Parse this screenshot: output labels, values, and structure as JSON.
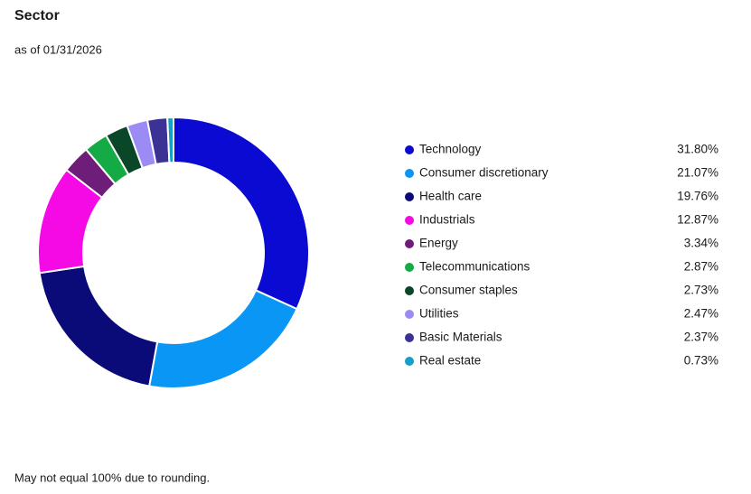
{
  "chart_data": {
    "type": "donut",
    "title": "Sector",
    "subtitle": "as of 01/31/2026",
    "categories": [
      "Technology",
      "Consumer discretionary",
      "Health care",
      "Industrials",
      "Energy",
      "Telecommunications",
      "Consumer staples",
      "Utilities",
      "Basic Materials",
      "Real estate"
    ],
    "values": [
      31.8,
      21.07,
      19.76,
      12.87,
      3.34,
      2.87,
      2.73,
      2.47,
      2.37,
      0.73
    ],
    "value_labels": [
      "31.80%",
      "21.07%",
      "19.76%",
      "12.87%",
      "3.34%",
      "2.87%",
      "2.73%",
      "2.47%",
      "2.37%",
      "0.73%"
    ],
    "colors": [
      "#0a0ad2",
      "#0a96f5",
      "#0a0a78",
      "#f50ae6",
      "#6e1e78",
      "#14aa46",
      "#0a4628",
      "#9b8cf5",
      "#3c3296",
      "#14a0c8"
    ],
    "note": "May not equal 100% due to rounding."
  }
}
